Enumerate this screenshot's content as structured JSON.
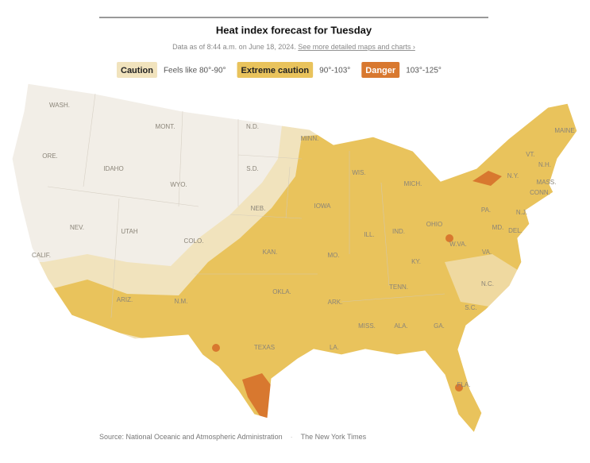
{
  "header": {
    "title": "Heat index forecast for Tuesday",
    "subtitle": "Data as of 8:44 a.m. on June 18, 2024.",
    "link": "See more detailed maps and charts ›"
  },
  "legend": [
    {
      "label": "Caution",
      "range": "Feels like 80°-90°",
      "color": "#f1e3bd"
    },
    {
      "label": "Extreme caution",
      "range": "90°-103°",
      "color": "#e9c35c"
    },
    {
      "label": "Danger",
      "range": "103°-125°",
      "color": "#d8782f"
    }
  ],
  "states": [
    "WASH.",
    "MONT.",
    "N.D.",
    "MINN.",
    "ORE.",
    "IDAHO",
    "WYO.",
    "S.D.",
    "WIS.",
    "MICH.",
    "VT.",
    "N.H.",
    "MAINE",
    "N.Y.",
    "MASS.",
    "CONN.",
    "IOWA",
    "NEB.",
    "PA.",
    "N.J.",
    "NEV.",
    "UTAH",
    "COLO.",
    "ILL.",
    "IND.",
    "OHIO",
    "MD.",
    "DEL.",
    "CALIF.",
    "KAN.",
    "MO.",
    "W.VA.",
    "VA.",
    "KY.",
    "N.C.",
    "TENN.",
    "OKLA.",
    "ARK.",
    "ARIZ.",
    "N.M.",
    "S.C.",
    "MISS.",
    "ALA.",
    "GA.",
    "TEXAS",
    "LA.",
    "FLA."
  ],
  "footer": {
    "source": "Source: National Oceanic and Atmospheric Administration",
    "credit": "The New York Times"
  }
}
